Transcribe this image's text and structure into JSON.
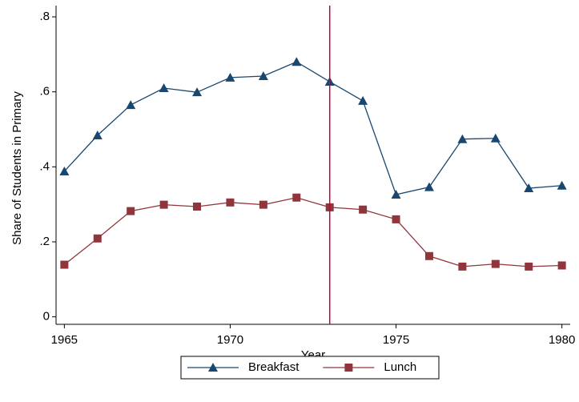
{
  "chart_data": {
    "type": "line",
    "x_label": "Year",
    "y_label": "Share of Students in Primary",
    "x": [
      1965,
      1966,
      1967,
      1968,
      1969,
      1970,
      1971,
      1972,
      1973,
      1974,
      1975,
      1976,
      1977,
      1978,
      1979,
      1980
    ],
    "series": [
      {
        "name": "Breakfast",
        "color": "#1a476f",
        "marker": "triangle",
        "values": [
          0.388,
          0.484,
          0.565,
          0.61,
          0.599,
          0.638,
          0.642,
          0.68,
          0.627,
          0.576,
          0.326,
          0.346,
          0.474,
          0.476,
          0.343,
          0.35
        ]
      },
      {
        "name": "Lunch",
        "color": "#90353b",
        "marker": "square",
        "values": [
          0.139,
          0.209,
          0.282,
          0.299,
          0.294,
          0.305,
          0.299,
          0.318,
          0.292,
          0.286,
          0.26,
          0.162,
          0.134,
          0.141,
          0.134,
          0.137
        ]
      }
    ],
    "vline": 1973,
    "vline_color": "#c10534",
    "xlim": [
      1964.75,
      1980.25
    ],
    "xticks": [
      1965,
      1970,
      1975,
      1980
    ],
    "ylim": [
      -0.02,
      0.83
    ],
    "yticks": [
      {
        "value": 0,
        "label": "0"
      },
      {
        "value": 0.2,
        "label": ".2"
      },
      {
        "value": 0.4,
        "label": ".4"
      },
      {
        "value": 0.6,
        "label": ".6"
      },
      {
        "value": 0.8,
        "label": ".8"
      }
    ]
  }
}
